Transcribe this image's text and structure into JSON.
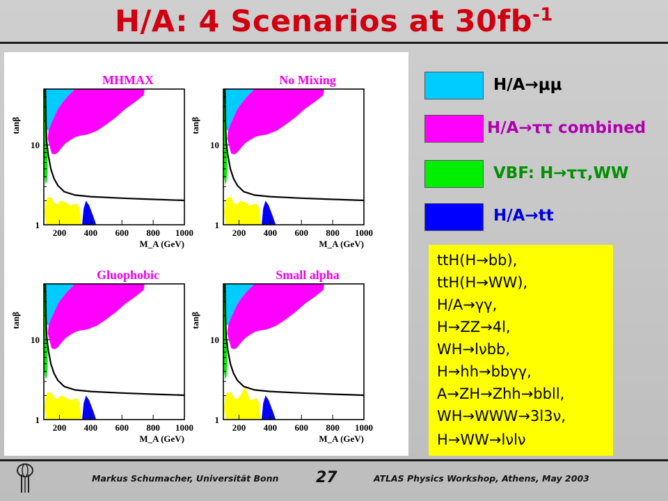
{
  "title": {
    "main": "H/A: 4 Scenarios at 30fb",
    "sup": "-1"
  },
  "chart_data": [
    {
      "type": "area",
      "title": "MHMAX",
      "xlabel": "M_A (GeV)",
      "ylabel": "tanβ",
      "xlim": [
        100,
        1000
      ],
      "ylim": [
        1,
        50
      ],
      "yscale": "log",
      "xticks": [
        "200",
        "400",
        "600",
        "800",
        "1000"
      ],
      "yticks": [
        "1",
        "10"
      ]
    },
    {
      "type": "area",
      "title": "No Mixing",
      "xlabel": "M_A (GeV)",
      "ylabel": "tanβ",
      "xlim": [
        100,
        1000
      ],
      "ylim": [
        1,
        50
      ],
      "yscale": "log",
      "xticks": [
        "200",
        "400",
        "600",
        "800",
        "1000"
      ],
      "yticks": [
        "1",
        "10"
      ]
    },
    {
      "type": "area",
      "title": "Gluophobic",
      "xlabel": "M_A (GeV)",
      "ylabel": "tanβ",
      "xlim": [
        100,
        1000
      ],
      "ylim": [
        1,
        50
      ],
      "yscale": "log",
      "xticks": [
        "200",
        "400",
        "600",
        "800",
        "1000"
      ],
      "yticks": [
        "1",
        "10"
      ]
    },
    {
      "type": "area",
      "title": "Small alpha",
      "xlabel": "M_A (GeV)",
      "ylabel": "tanβ",
      "xlim": [
        100,
        1000
      ],
      "ylim": [
        1,
        50
      ],
      "yscale": "log",
      "xticks": [
        "200",
        "400",
        "600",
        "800",
        "1000"
      ],
      "yticks": [
        "1",
        "10"
      ]
    }
  ],
  "legend": [
    {
      "label": "H/A→μμ",
      "color": "#00ccff",
      "text_color": "#000000"
    },
    {
      "label": "H/A→ττ combined",
      "color": "#ff00ff",
      "text_color": "#b000b0"
    },
    {
      "label": "VBF: H→ττ,WW",
      "color": "#00ee00",
      "text_color": "#009000"
    },
    {
      "label": "H/A→tt",
      "color": "#0000ff",
      "text_color": "#0000dd"
    }
  ],
  "yellow_box": {
    "color": "#ffff00",
    "lines": [
      "ttH(H→bb),",
      "ttH(H→WW),",
      "H/A→γγ,",
      "H→ZZ→4l,",
      "WH→lνbb,",
      "H→hh→bbγγ,",
      "A→ZH→Zhh→bbll,",
      "WH→WWW→3l3ν,",
      "H→WW→lνlν"
    ]
  },
  "footer": {
    "left": "Markus Schumacher,  Universität Bonn",
    "page": "27",
    "right": "ATLAS Physics Workshop, Athens, May 2003"
  },
  "colors": {
    "black_curve": "#000000",
    "axis_text": "#000000",
    "title_red": "#d00010",
    "plot_title_magenta": "#ee00ee"
  }
}
